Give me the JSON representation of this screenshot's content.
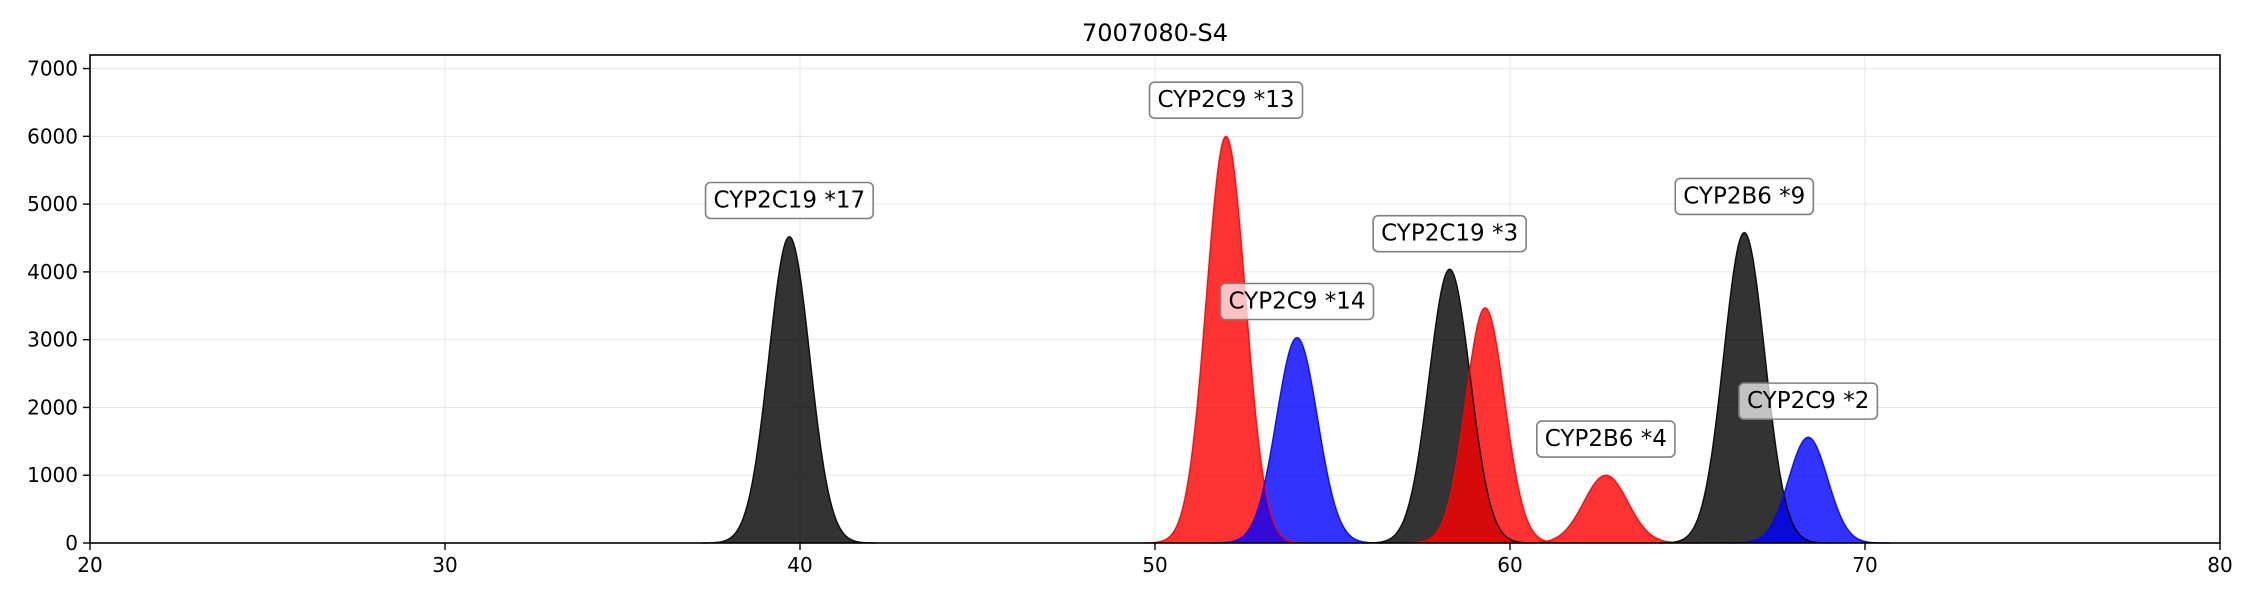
{
  "chart_data": {
    "type": "area",
    "title": "7007080-S4",
    "xlabel": "",
    "ylabel": "",
    "xlim": [
      20,
      80
    ],
    "ylim": [
      0,
      7200
    ],
    "xticks": [
      20,
      30,
      40,
      50,
      60,
      70,
      80
    ],
    "yticks": [
      0,
      1000,
      2000,
      3000,
      4000,
      5000,
      6000,
      7000
    ],
    "grid": true,
    "colors": {
      "black": "#000000",
      "red": "#ff0000",
      "blue": "#0000ff"
    },
    "peaks": [
      {
        "label": "CYP2C19 *17",
        "x": 39.7,
        "height": 4520,
        "sigma": 0.58,
        "color": "black",
        "label_x": 39.7,
        "label_y": 4950
      },
      {
        "label": "CYP2C9 *13",
        "x": 52.0,
        "height": 6000,
        "sigma": 0.55,
        "color": "red",
        "label_x": 52.0,
        "label_y": 6430
      },
      {
        "label": "CYP2C9 *14",
        "x": 54.0,
        "height": 3030,
        "sigma": 0.58,
        "color": "blue",
        "label_x": 54.0,
        "label_y": 3460
      },
      {
        "label": "CYP2C19 *3",
        "x": 58.3,
        "height": 4040,
        "sigma": 0.58,
        "color": "black",
        "label_x": 58.3,
        "label_y": 4460
      },
      {
        "label": "",
        "x": 59.3,
        "height": 3470,
        "sigma": 0.55,
        "color": "red"
      },
      {
        "label": "CYP2B6 *4",
        "x": 62.7,
        "height": 1000,
        "sigma": 0.62,
        "color": "red",
        "label_x": 62.7,
        "label_y": 1430
      },
      {
        "label": "CYP2B6 *9",
        "x": 66.6,
        "height": 4580,
        "sigma": 0.58,
        "color": "black",
        "label_x": 66.6,
        "label_y": 5010
      },
      {
        "label": "CYP2C9 *2",
        "x": 68.4,
        "height": 1560,
        "sigma": 0.55,
        "color": "blue",
        "label_x": 68.4,
        "label_y": 1990
      }
    ]
  }
}
